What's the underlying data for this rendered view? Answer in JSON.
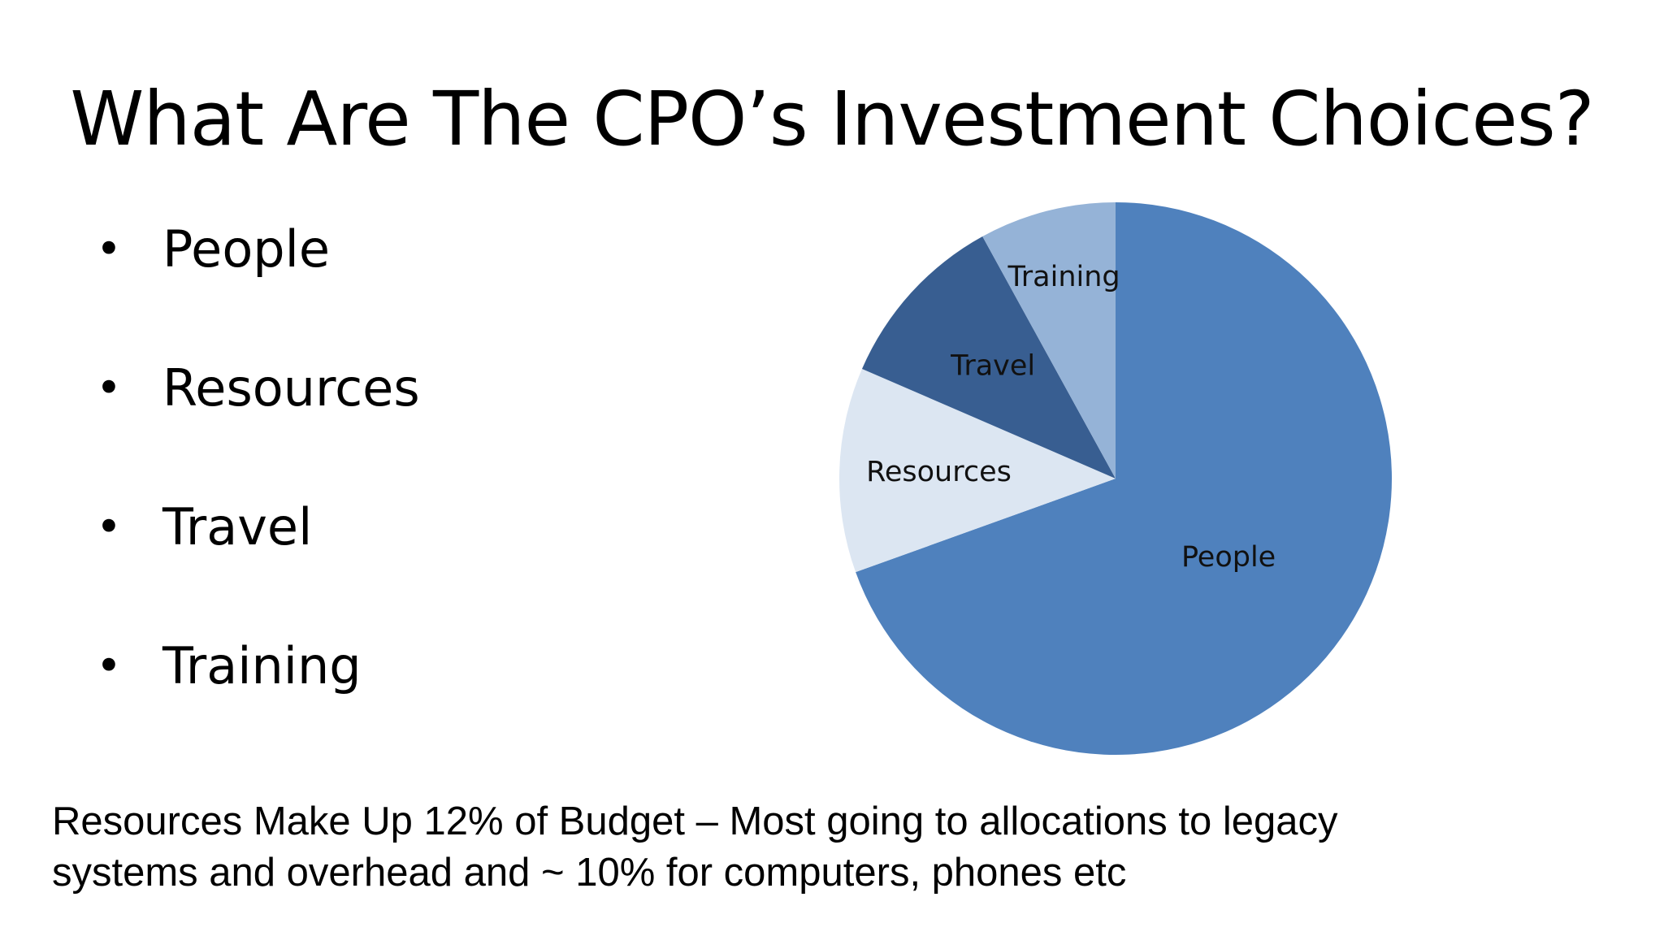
{
  "slide": {
    "title": "What Are The CPO’s Investment Choices?",
    "bullets": [
      "People",
      "Resources",
      "Travel",
      "Training"
    ],
    "bullet_glyph": "•",
    "footnote_lines": [
      "Resources Make Up 12% of Budget – Most going to allocations to legacy",
      "systems and overhead and ~ 10% for computers, phones etc"
    ]
  },
  "chart_data": {
    "type": "pie",
    "title": "",
    "start_angle_deg": 0,
    "direction": "clockwise",
    "slices": [
      {
        "label": "People",
        "value": 69.5,
        "color": "#4f81bd"
      },
      {
        "label": "Resources",
        "value": 12,
        "color": "#dce6f2"
      },
      {
        "label": "Travel",
        "value": 10.5,
        "color": "#385e91"
      },
      {
        "label": "Training",
        "value": 8,
        "color": "#95b3d7"
      }
    ],
    "legend": "none",
    "data_labels": "category names on slices"
  }
}
